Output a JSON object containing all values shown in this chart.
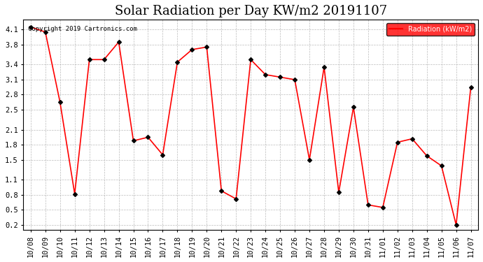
{
  "title": "Solar Radiation per Day KW/m2 20191107",
  "legend_label": "Radiation (kW/m2)",
  "copyright": "Copyright 2019 Cartronics.com",
  "dates": [
    "10/08",
    "10/09",
    "10/10",
    "10/11",
    "10/12",
    "10/13",
    "10/14",
    "10/15",
    "10/16",
    "10/17",
    "10/18",
    "10/19",
    "10/20",
    "10/21",
    "10/22",
    "10/23",
    "10/24",
    "10/25",
    "10/26",
    "10/27",
    "10/28",
    "10/29",
    "10/30",
    "10/31",
    "11/01",
    "11/02",
    "11/03",
    "11/04",
    "11/05",
    "11/06",
    "11/07"
  ],
  "values": [
    4.15,
    4.05,
    2.65,
    0.82,
    3.5,
    3.5,
    3.85,
    1.88,
    1.95,
    1.6,
    3.45,
    3.7,
    3.75,
    0.88,
    0.72,
    3.5,
    3.2,
    3.15,
    3.1,
    1.5,
    3.35,
    0.85,
    2.55,
    0.6,
    0.55,
    1.85,
    1.92,
    1.58,
    1.38,
    0.2,
    2.95
  ],
  "ylim": [
    0.1,
    4.3
  ],
  "yticks": [
    0.2,
    0.5,
    0.8,
    1.1,
    1.5,
    1.8,
    2.1,
    2.5,
    2.8,
    3.1,
    3.4,
    3.8,
    4.1
  ],
  "line_color": "red",
  "marker_color": "black",
  "bg_color": "white",
  "grid_color": "#aaaaaa",
  "title_fontsize": 13,
  "tick_fontsize": 7.5
}
